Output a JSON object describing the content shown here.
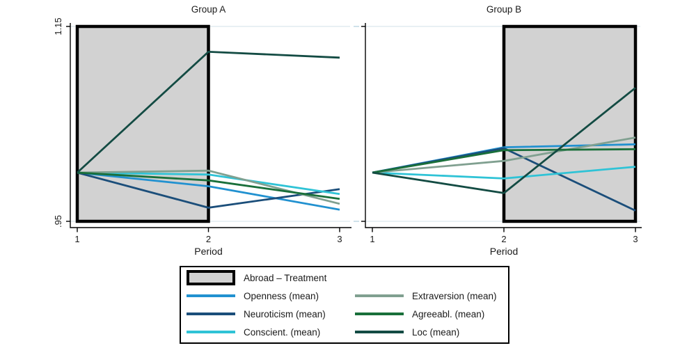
{
  "figure": {
    "background": "#ffffff",
    "text_color": "#1a1a1a",
    "axis_color": "#000000",
    "grid_color": "#e0ebf1",
    "grid_stub_color": "#cfe2ea",
    "treatment_fill": "#d2d2d2",
    "treatment_border": "#000000"
  },
  "chart_data": {
    "type": "line",
    "xlabel": "Period",
    "x": [
      1,
      2,
      3
    ],
    "ylim": [
      0.95,
      1.15
    ],
    "grid": "horizontal-at-ticks",
    "legend_position": "bottom",
    "yticks": [
      {
        "value": 1.15,
        "label": "1.15"
      },
      {
        "value": 0.95,
        "label": ".95"
      }
    ],
    "panels": [
      {
        "title": "Group A",
        "treatment_span": [
          1,
          2
        ],
        "show_ytick_labels": true,
        "series": [
          {
            "name": "Openness (mean)",
            "color": "#2191d0",
            "values": [
              1.0,
              0.986,
              0.962
            ]
          },
          {
            "name": "Neuroticism (mean)",
            "color": "#1b4e7a",
            "values": [
              1.0,
              0.964,
              0.983
            ]
          },
          {
            "name": "Conscient. (mean)",
            "color": "#2fc3d6",
            "values": [
              1.0,
              0.998,
              0.978
            ]
          },
          {
            "name": "Extraversion (mean)",
            "color": "#80a090",
            "values": [
              1.0,
              1.002,
              0.968
            ]
          },
          {
            "name": "Agreeabl. (mean)",
            "color": "#196f3a",
            "values": [
              1.0,
              0.992,
              0.973
            ]
          },
          {
            "name": "Loc (mean)",
            "color": "#134b43",
            "values": [
              1.0,
              1.124,
              1.118
            ]
          }
        ]
      },
      {
        "title": "Group B",
        "treatment_span": [
          2,
          3
        ],
        "show_ytick_labels": false,
        "series": [
          {
            "name": "Openness (mean)",
            "color": "#2191d0",
            "values": [
              1.0,
              1.026,
              1.029
            ]
          },
          {
            "name": "Neuroticism (mean)",
            "color": "#1b4e7a",
            "values": [
              1.0,
              1.025,
              0.961
            ]
          },
          {
            "name": "Conscient. (mean)",
            "color": "#2fc3d6",
            "values": [
              1.0,
              0.994,
              1.006
            ]
          },
          {
            "name": "Extraversion (mean)",
            "color": "#80a090",
            "values": [
              1.0,
              1.012,
              1.036
            ]
          },
          {
            "name": "Agreeabl. (mean)",
            "color": "#196f3a",
            "values": [
              1.0,
              1.023,
              1.024
            ]
          },
          {
            "name": "Loc (mean)",
            "color": "#134b43",
            "values": [
              1.0,
              0.979,
              1.087
            ]
          }
        ]
      }
    ],
    "legend": {
      "treatment_label": "Abroad – Treatment",
      "entries": [
        {
          "label": "Openness (mean)",
          "color": "#2191d0",
          "col": 0,
          "row": 0
        },
        {
          "label": "Neuroticism (mean)",
          "color": "#1b4e7a",
          "col": 0,
          "row": 1
        },
        {
          "label": "Conscient. (mean)",
          "color": "#2fc3d6",
          "col": 0,
          "row": 2
        },
        {
          "label": "Extraversion (mean)",
          "color": "#80a090",
          "col": 1,
          "row": 0
        },
        {
          "label": "Agreeabl. (mean)",
          "color": "#196f3a",
          "col": 1,
          "row": 1
        },
        {
          "label": "Loc (mean)",
          "color": "#134b43",
          "col": 1,
          "row": 2
        }
      ]
    }
  }
}
